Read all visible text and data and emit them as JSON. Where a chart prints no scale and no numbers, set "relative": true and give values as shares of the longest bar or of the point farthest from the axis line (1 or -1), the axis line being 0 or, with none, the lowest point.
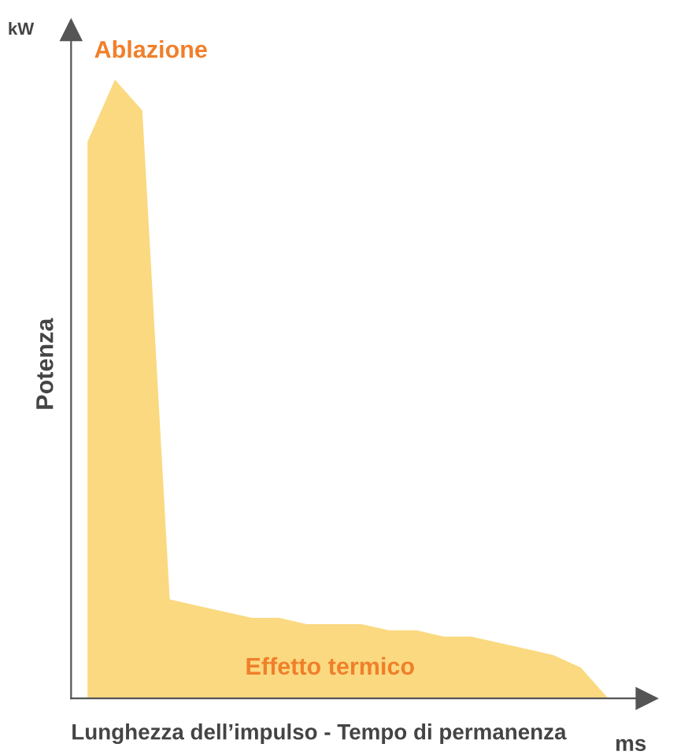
{
  "chart_data": {
    "type": "area",
    "relative": true,
    "xlabel": "Lunghezza dell’impulso - Tempo di permanenza",
    "ylabel": "Potenza",
    "categories": [
      null,
      null,
      null,
      null,
      null,
      null,
      null,
      null,
      null,
      null,
      null,
      null,
      null,
      null,
      null,
      null,
      null,
      null,
      null,
      null
    ],
    "series": [
      {
        "color": "#f9d26a",
        "values": [
          0.9,
          1.0,
          0.95,
          0.16,
          0.15,
          0.14,
          0.13,
          0.13,
          0.12,
          0.12,
          0.12,
          0.11,
          0.11,
          0.1,
          0.1,
          0.09,
          0.08,
          0.07,
          0.05,
          0.0
        ]
      }
    ],
    "annotations": [
      "Ablazione",
      "Effetto termico",
      "kW",
      "ms"
    ],
    "grid": false,
    "legend": false
  }
}
